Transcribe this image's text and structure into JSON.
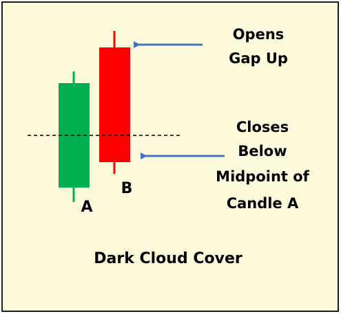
{
  "colors": {
    "background": "#fdfbdc",
    "border": "#1a1a1a",
    "bullish": "#00b050",
    "bearish": "#ff0000",
    "arrow": "#4472c4",
    "midline": "#000000"
  },
  "candles": [
    {
      "id": "A",
      "label": "A",
      "direction": "bullish"
    },
    {
      "id": "B",
      "label": "B",
      "direction": "bearish"
    }
  ],
  "annotations": {
    "opens_gap_up": [
      "Opens",
      "Gap Up"
    ],
    "closes_below": [
      "Closes",
      "Below",
      "Midpoint of",
      "Candle A"
    ]
  },
  "title": "Dark Cloud Cover"
}
